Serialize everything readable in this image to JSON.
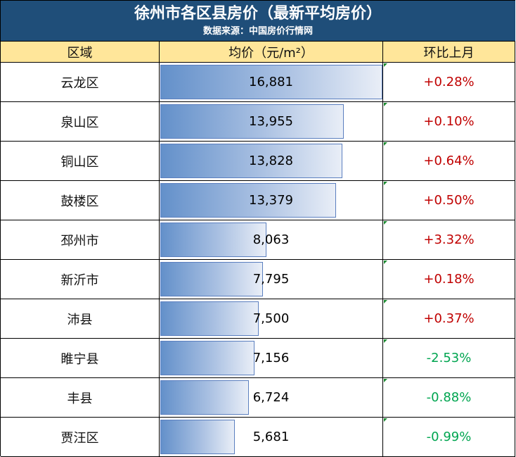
{
  "title": "徐州市各区县房价（最新平均房价）",
  "source": "数据来源：中国房价行情网",
  "header": {
    "region": "区域",
    "price": "均价（元/m²）",
    "change": "环比上月"
  },
  "colors": {
    "banner": "#1f4e79",
    "header_bg": "#ffe69a",
    "up": "#c00000",
    "down": "#00a550",
    "bar": "#6390ca"
  },
  "chart_data": {
    "type": "table",
    "title": "徐州市各区县房价（最新平均房价）",
    "columns": [
      "区域",
      "均价（元/m²）",
      "环比上月"
    ],
    "rows": [
      {
        "region": "云龙区",
        "price": 16881,
        "price_label": "16,881",
        "change": "+0.28%"
      },
      {
        "region": "泉山区",
        "price": 13955,
        "price_label": "13,955",
        "change": "+0.10%"
      },
      {
        "region": "铜山区",
        "price": 13828,
        "price_label": "13,828",
        "change": "+0.64%"
      },
      {
        "region": "鼓楼区",
        "price": 13379,
        "price_label": "13,379",
        "change": "+0.50%"
      },
      {
        "region": "邳州市",
        "price": 8063,
        "price_label": "8,063",
        "change": "+3.32%"
      },
      {
        "region": "新沂市",
        "price": 7795,
        "price_label": "7,795",
        "change": "+0.18%"
      },
      {
        "region": "沛县",
        "price": 7500,
        "price_label": "7,500",
        "change": "+0.37%"
      },
      {
        "region": "睢宁县",
        "price": 7156,
        "price_label": "7,156",
        "change": "-2.53%"
      },
      {
        "region": "丰县",
        "price": 6724,
        "price_label": "6,724",
        "change": "-0.88%"
      },
      {
        "region": "贾汪区",
        "price": 5681,
        "price_label": "5,681",
        "change": "-0.99%"
      }
    ]
  }
}
